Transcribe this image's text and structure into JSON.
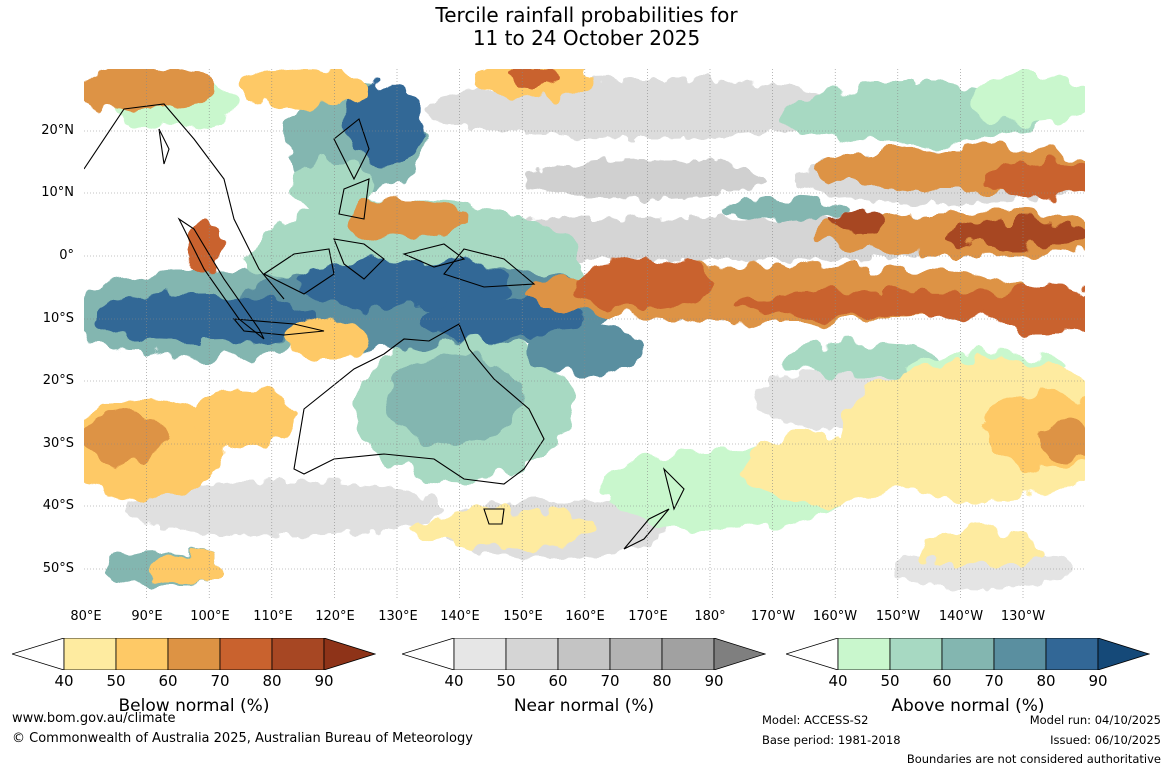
{
  "title": {
    "line1": "Tercile rainfall probabilities for",
    "line2": "11 to 24 October 2025"
  },
  "map": {
    "lat_labels": [
      "20°N",
      "10°N",
      "0°",
      "10°S",
      "20°S",
      "30°S",
      "40°S",
      "50°S"
    ],
    "lon_labels": [
      "80°E",
      "90°E",
      "100°E",
      "110°E",
      "120°E",
      "130°E",
      "140°E",
      "150°E",
      "160°E",
      "170°E",
      "180°",
      "170°W",
      "160°W",
      "150°W",
      "140°W",
      "130°W"
    ]
  },
  "colorbars": [
    {
      "title": "Below normal (%)",
      "ticks": [
        "40",
        "50",
        "60",
        "70",
        "80",
        "90"
      ],
      "colors": [
        "#ffffff",
        "#feeba0",
        "#fec966",
        "#dd9344",
        "#c9622e",
        "#a74723",
        "#8e3318"
      ]
    },
    {
      "title": "Near normal (%)",
      "ticks": [
        "40",
        "50",
        "60",
        "70",
        "80",
        "90"
      ],
      "colors": [
        "#ffffff",
        "#e6e6e6",
        "#d5d5d5",
        "#c4c4c4",
        "#b3b3b3",
        "#a1a1a1",
        "#7f7f7f"
      ]
    },
    {
      "title": "Above normal (%)",
      "ticks": [
        "40",
        "50",
        "60",
        "70",
        "80",
        "90"
      ],
      "colors": [
        "#ffffff",
        "#c9f7cd",
        "#a7d9c2",
        "#83b6b0",
        "#5a8fa0",
        "#326796",
        "#154978"
      ]
    }
  ],
  "footer": {
    "website": "www.bom.gov.au/climate",
    "copyright": "© Commonwealth of Australia 2025, Australian Bureau of Meteorology",
    "model": "Model: ACCESS-S2",
    "base_period": "Base period: 1981-2018",
    "model_run": "Model run: 04/10/2025",
    "issued": "Issued: 06/10/2025",
    "disclaimer": "Boundaries are not considered authoritative"
  }
}
